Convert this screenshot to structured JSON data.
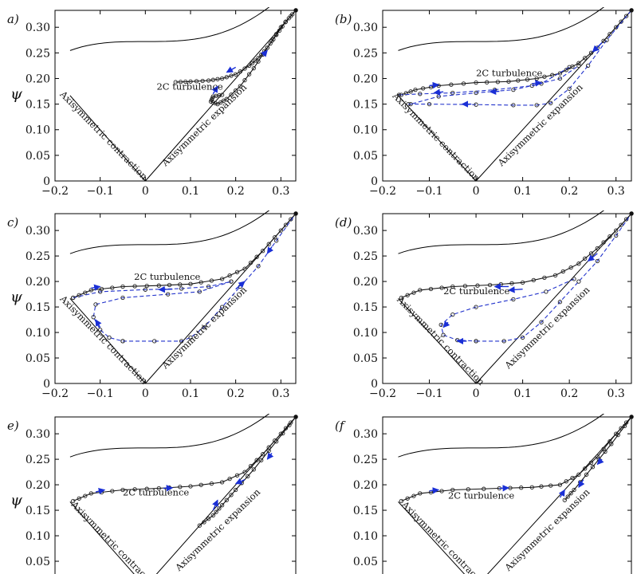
{
  "figure": {
    "ylabel": "ψ",
    "annotations": {
      "two_c": "2C turbulence",
      "contraction": "Axisymmetric contraction",
      "expansion": "Axisymmetric expansion"
    },
    "colors": {
      "curve": "#111111",
      "arrow": "#1a2fd6",
      "dashed": "#2233cc"
    }
  },
  "chart_data": [
    {
      "type": "scatter",
      "panel": "a)",
      "xlim": [
        -0.2,
        0.333
      ],
      "ylim": [
        0,
        0.333
      ],
      "xticks": [
        -0.2,
        -0.1,
        0,
        0.1,
        0.2,
        0.3
      ],
      "yticks": [
        0,
        0.05,
        0.1,
        0.15,
        0.2,
        0.25,
        0.3
      ],
      "series": [
        {
          "style": "solid",
          "points": [
            [
              0.333,
              0.333
            ],
            [
              0.31,
              0.31
            ],
            [
              0.29,
              0.285
            ],
            [
              0.27,
              0.26
            ],
            [
              0.25,
              0.24
            ],
            [
              0.23,
              0.225
            ],
            [
              0.2,
              0.208
            ],
            [
              0.17,
              0.2
            ],
            [
              0.14,
              0.196
            ],
            [
              0.1,
              0.194
            ],
            [
              0.067,
              0.193
            ]
          ]
        },
        {
          "style": "solid",
          "points": [
            [
              0.333,
              0.333
            ],
            [
              0.3,
              0.3
            ],
            [
              0.27,
              0.26
            ],
            [
              0.24,
              0.22
            ],
            [
              0.21,
              0.185
            ],
            [
              0.18,
              0.16
            ],
            [
              0.16,
              0.15
            ],
            [
              0.145,
              0.155
            ],
            [
              0.15,
              0.165
            ],
            [
              0.17,
              0.168
            ]
          ]
        }
      ]
    },
    {
      "type": "scatter",
      "panel": "(b)",
      "xlim": [
        -0.2,
        0.333
      ],
      "ylim": [
        0,
        0.333
      ],
      "xticks": [
        -0.2,
        -0.1,
        0,
        0.1,
        0.2,
        0.3
      ],
      "yticks": [
        0,
        0.05,
        0.1,
        0.15,
        0.2,
        0.25,
        0.3
      ],
      "series": [
        {
          "style": "solid",
          "points": [
            [
              0.333,
              0.333
            ],
            [
              0.3,
              0.3
            ],
            [
              0.26,
              0.26
            ],
            [
              0.22,
              0.23
            ],
            [
              0.18,
              0.21
            ],
            [
              0.13,
              0.2
            ],
            [
              0.07,
              0.194
            ],
            [
              0.0,
              0.192
            ],
            [
              -0.08,
              0.186
            ],
            [
              -0.13,
              0.178
            ],
            [
              -0.16,
              0.168
            ]
          ]
        },
        {
          "style": "dashed",
          "points": [
            [
              -0.165,
              0.168
            ],
            [
              -0.12,
              0.17
            ],
            [
              -0.05,
              0.172
            ],
            [
              0.04,
              0.178
            ],
            [
              0.12,
              0.186
            ],
            [
              0.18,
              0.2
            ],
            [
              0.22,
              0.225
            ]
          ]
        },
        {
          "style": "dashed",
          "points": [
            [
              0.2,
              0.222
            ],
            [
              0.14,
              0.19
            ],
            [
              0.08,
              0.178
            ],
            [
              0.0,
              0.172
            ],
            [
              -0.08,
              0.165
            ],
            [
              -0.14,
              0.15
            ]
          ]
        },
        {
          "style": "dashed",
          "points": [
            [
              -0.145,
              0.15
            ],
            [
              -0.1,
              0.15
            ],
            [
              0.0,
              0.149
            ],
            [
              0.08,
              0.148
            ],
            [
              0.13,
              0.148
            ],
            [
              0.16,
              0.152
            ],
            [
              0.2,
              0.18
            ],
            [
              0.24,
              0.225
            ],
            [
              0.28,
              0.275
            ],
            [
              0.333,
              0.333
            ]
          ]
        }
      ]
    },
    {
      "type": "scatter",
      "panel": "c)",
      "xlim": [
        -0.2,
        0.333
      ],
      "ylim": [
        0,
        0.333
      ],
      "xticks": [
        -0.2,
        -0.1,
        0,
        0.1,
        0.2,
        0.3
      ],
      "yticks": [
        0,
        0.05,
        0.1,
        0.15,
        0.2,
        0.25,
        0.3
      ],
      "series": [
        {
          "style": "solid",
          "points": [
            [
              0.333,
              0.333
            ],
            [
              0.3,
              0.3
            ],
            [
              0.26,
              0.26
            ],
            [
              0.22,
              0.225
            ],
            [
              0.17,
              0.205
            ],
            [
              0.1,
              0.195
            ],
            [
              0.03,
              0.192
            ],
            [
              -0.05,
              0.19
            ],
            [
              -0.12,
              0.183
            ],
            [
              -0.16,
              0.168
            ]
          ]
        },
        {
          "style": "dashed",
          "points": [
            [
              -0.16,
              0.168
            ],
            [
              -0.1,
              0.18
            ],
            [
              0.0,
              0.184
            ],
            [
              0.08,
              0.186
            ],
            [
              0.14,
              0.19
            ],
            [
              0.19,
              0.2
            ]
          ]
        },
        {
          "style": "dashed",
          "points": [
            [
              0.19,
              0.2
            ],
            [
              0.12,
              0.18
            ],
            [
              0.05,
              0.175
            ],
            [
              -0.05,
              0.168
            ],
            [
              -0.11,
              0.155
            ],
            [
              -0.115,
              0.13
            ],
            [
              -0.1,
              0.105
            ],
            [
              -0.08,
              0.09
            ],
            [
              -0.05,
              0.083
            ]
          ]
        },
        {
          "style": "dashed",
          "points": [
            [
              -0.05,
              0.083
            ],
            [
              0.02,
              0.083
            ],
            [
              0.08,
              0.083
            ],
            [
              0.1,
              0.09
            ],
            [
              0.13,
              0.11
            ],
            [
              0.17,
              0.15
            ],
            [
              0.21,
              0.19
            ],
            [
              0.25,
              0.23
            ],
            [
              0.29,
              0.28
            ],
            [
              0.333,
              0.333
            ]
          ]
        }
      ]
    },
    {
      "type": "scatter",
      "panel": "(d)",
      "xlim": [
        -0.2,
        0.333
      ],
      "ylim": [
        0,
        0.333
      ],
      "xticks": [
        -0.2,
        -0.1,
        0,
        0.1,
        0.2,
        0.3
      ],
      "yticks": [
        0,
        0.05,
        0.1,
        0.15,
        0.2,
        0.25,
        0.3
      ],
      "series": [
        {
          "style": "solid",
          "points": [
            [
              0.333,
              0.333
            ],
            [
              0.3,
              0.3
            ],
            [
              0.26,
              0.265
            ],
            [
              0.22,
              0.235
            ],
            [
              0.17,
              0.212
            ],
            [
              0.1,
              0.198
            ],
            [
              0.03,
              0.193
            ],
            [
              -0.05,
              0.19
            ],
            [
              -0.12,
              0.183
            ],
            [
              -0.16,
              0.168
            ]
          ]
        },
        {
          "style": "dashed",
          "points": [
            [
              0.21,
              0.205
            ],
            [
              0.15,
              0.18
            ],
            [
              0.08,
              0.165
            ],
            [
              0.0,
              0.15
            ],
            [
              -0.05,
              0.135
            ],
            [
              -0.075,
              0.115
            ],
            [
              -0.07,
              0.095
            ],
            [
              -0.04,
              0.085
            ],
            [
              0.0,
              0.083
            ]
          ]
        },
        {
          "style": "dashed",
          "points": [
            [
              0.0,
              0.083
            ],
            [
              0.06,
              0.083
            ],
            [
              0.1,
              0.09
            ],
            [
              0.14,
              0.12
            ],
            [
              0.18,
              0.16
            ],
            [
              0.22,
              0.2
            ],
            [
              0.26,
              0.24
            ],
            [
              0.3,
              0.29
            ],
            [
              0.333,
              0.333
            ]
          ]
        }
      ]
    },
    {
      "type": "scatter",
      "panel": "e)",
      "xlim": [
        -0.2,
        0.333
      ],
      "ylim": [
        0,
        0.333
      ],
      "yticks": [
        0.05,
        0.1,
        0.15,
        0.2,
        0.25,
        0.3
      ],
      "series": [
        {
          "style": "solid",
          "points": [
            [
              0.333,
              0.333
            ],
            [
              0.3,
              0.3
            ],
            [
              0.26,
              0.26
            ],
            [
              0.22,
              0.225
            ],
            [
              0.17,
              0.205
            ],
            [
              0.1,
              0.197
            ],
            [
              0.03,
              0.193
            ],
            [
              -0.05,
              0.19
            ],
            [
              -0.12,
              0.183
            ],
            [
              -0.16,
              0.168
            ]
          ]
        },
        {
          "style": "solid",
          "points": [
            [
              0.333,
              0.333
            ],
            [
              0.29,
              0.285
            ],
            [
              0.24,
              0.23
            ],
            [
              0.2,
              0.19
            ],
            [
              0.17,
              0.16
            ],
            [
              0.15,
              0.14
            ],
            [
              0.12,
              0.12
            ]
          ]
        }
      ]
    },
    {
      "type": "scatter",
      "panel": "(f",
      "xlim": [
        -0.2,
        0.333
      ],
      "ylim": [
        0,
        0.333
      ],
      "yticks": [
        0.05,
        0.1,
        0.15,
        0.2,
        0.25,
        0.3
      ],
      "series": [
        {
          "style": "solid",
          "points": [
            [
              0.333,
              0.333
            ],
            [
              0.3,
              0.3
            ],
            [
              0.26,
              0.255
            ],
            [
              0.22,
              0.22
            ],
            [
              0.18,
              0.2
            ],
            [
              0.12,
              0.195
            ],
            [
              0.05,
              0.193
            ],
            [
              -0.05,
              0.19
            ],
            [
              -0.12,
              0.183
            ],
            [
              -0.16,
              0.168
            ]
          ]
        },
        {
          "style": "solid",
          "points": [
            [
              0.333,
              0.333
            ],
            [
              0.29,
              0.28
            ],
            [
              0.25,
              0.235
            ],
            [
              0.21,
              0.19
            ],
            [
              0.19,
              0.17
            ]
          ]
        }
      ]
    }
  ]
}
